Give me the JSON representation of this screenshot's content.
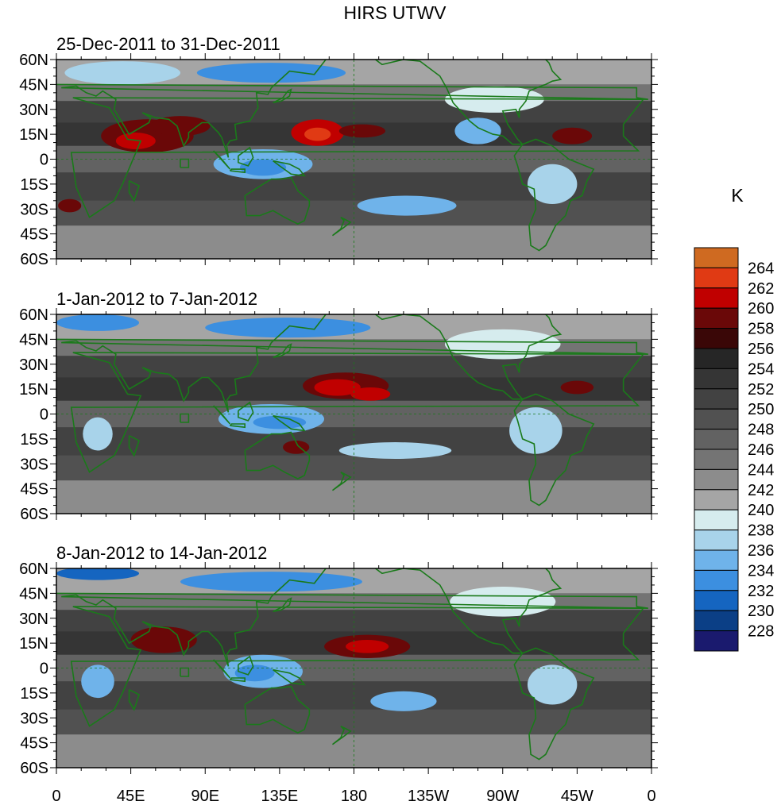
{
  "title": "HIRS UTWV",
  "colorbar": {
    "unit": "K",
    "levels": [
      228,
      230,
      232,
      234,
      236,
      238,
      240,
      242,
      244,
      246,
      248,
      250,
      252,
      254,
      256,
      258,
      260,
      262,
      264
    ],
    "colors": [
      "#1a1a6e",
      "#0b3f86",
      "#1565c0",
      "#3c8fe0",
      "#6fb3ea",
      "#a8d3ea",
      "#d6ecee",
      "#a5a5a5",
      "#8c8c8c",
      "#747474",
      "#626262",
      "#515151",
      "#424242",
      "#353535",
      "#262626",
      "#3a0707",
      "#6a0808",
      "#c00000",
      "#e03a14",
      "#cf6a21"
    ]
  },
  "axes": {
    "y_ticks": [
      "60N",
      "45N",
      "30N",
      "15N",
      "0",
      "15S",
      "30S",
      "45S",
      "60S"
    ],
    "x_ticks": [
      "0",
      "45E",
      "90E",
      "135E",
      "180",
      "135W",
      "90W",
      "45W",
      "0"
    ]
  },
  "panels": [
    {
      "title": "25-Dec-2011 to 31-Dec-2011",
      "features": [
        {
          "lon": 55,
          "lat": 14,
          "rx": 28,
          "ry": 10,
          "color": "#6a0808"
        },
        {
          "lon": 48,
          "lat": 11,
          "rx": 12,
          "ry": 5,
          "color": "#c00000"
        },
        {
          "lon": 75,
          "lat": 20,
          "rx": 18,
          "ry": 6,
          "color": "#6a0808"
        },
        {
          "lon": 158,
          "lat": 16,
          "rx": 16,
          "ry": 8,
          "color": "#c00000"
        },
        {
          "lon": 158,
          "lat": 15,
          "rx": 8,
          "ry": 4,
          "color": "#e03a14"
        },
        {
          "lon": 185,
          "lat": 17,
          "rx": 14,
          "ry": 4,
          "color": "#6a0808"
        },
        {
          "lon": 312,
          "lat": 14,
          "rx": 12,
          "ry": 5,
          "color": "#6a0808"
        },
        {
          "lon": 8,
          "lat": -28,
          "rx": 7,
          "ry": 4,
          "color": "#6a0808"
        },
        {
          "lon": 125,
          "lat": -3,
          "rx": 30,
          "ry": 9,
          "color": "#6fb3ea"
        },
        {
          "lon": 125,
          "lat": -5,
          "rx": 14,
          "ry": 5,
          "color": "#3c8fe0"
        },
        {
          "lon": 212,
          "lat": -28,
          "rx": 30,
          "ry": 6,
          "color": "#6fb3ea"
        },
        {
          "lon": 255,
          "lat": 17,
          "rx": 14,
          "ry": 8,
          "color": "#6fb3ea"
        },
        {
          "lon": 300,
          "lat": -15,
          "rx": 15,
          "ry": 12,
          "color": "#a8d3ea"
        },
        {
          "lon": 130,
          "lat": 52,
          "rx": 45,
          "ry": 6,
          "color": "#3c8fe0"
        },
        {
          "lon": 265,
          "lat": 36,
          "rx": 30,
          "ry": 8,
          "color": "#d6ecee"
        },
        {
          "lon": 40,
          "lat": 52,
          "rx": 35,
          "ry": 7,
          "color": "#a8d3ea"
        }
      ]
    },
    {
      "title": "1-Jan-2012 to 7-Jan-2012",
      "features": [
        {
          "lon": 175,
          "lat": 17,
          "rx": 26,
          "ry": 8,
          "color": "#6a0808"
        },
        {
          "lon": 170,
          "lat": 16,
          "rx": 14,
          "ry": 5,
          "color": "#c00000"
        },
        {
          "lon": 190,
          "lat": 12,
          "rx": 12,
          "ry": 4,
          "color": "#c00000"
        },
        {
          "lon": 315,
          "lat": 16,
          "rx": 10,
          "ry": 4,
          "color": "#6a0808"
        },
        {
          "lon": 145,
          "lat": -20,
          "rx": 8,
          "ry": 4,
          "color": "#6a0808"
        },
        {
          "lon": 130,
          "lat": -3,
          "rx": 32,
          "ry": 9,
          "color": "#6fb3ea"
        },
        {
          "lon": 135,
          "lat": -5,
          "rx": 16,
          "ry": 4,
          "color": "#3c8fe0"
        },
        {
          "lon": 205,
          "lat": -22,
          "rx": 34,
          "ry": 5,
          "color": "#a8d3ea"
        },
        {
          "lon": 290,
          "lat": -10,
          "rx": 16,
          "ry": 14,
          "color": "#a8d3ea"
        },
        {
          "lon": 25,
          "lat": -12,
          "rx": 9,
          "ry": 10,
          "color": "#a8d3ea"
        },
        {
          "lon": 140,
          "lat": 52,
          "rx": 50,
          "ry": 6,
          "color": "#3c8fe0"
        },
        {
          "lon": 25,
          "lat": 55,
          "rx": 25,
          "ry": 5,
          "color": "#3c8fe0"
        },
        {
          "lon": 270,
          "lat": 42,
          "rx": 35,
          "ry": 9,
          "color": "#d6ecee"
        }
      ]
    },
    {
      "title": "8-Jan-2012 to 14-Jan-2012",
      "features": [
        {
          "lon": 65,
          "lat": 17,
          "rx": 20,
          "ry": 8,
          "color": "#6a0808"
        },
        {
          "lon": 188,
          "lat": 13,
          "rx": 26,
          "ry": 7,
          "color": "#6a0808"
        },
        {
          "lon": 188,
          "lat": 13,
          "rx": 13,
          "ry": 4,
          "color": "#c00000"
        },
        {
          "lon": 125,
          "lat": -2,
          "rx": 24,
          "ry": 10,
          "color": "#6fb3ea"
        },
        {
          "lon": 120,
          "lat": -3,
          "rx": 12,
          "ry": 5,
          "color": "#3c8fe0"
        },
        {
          "lon": 210,
          "lat": -20,
          "rx": 20,
          "ry": 6,
          "color": "#6fb3ea"
        },
        {
          "lon": 25,
          "lat": -8,
          "rx": 10,
          "ry": 10,
          "color": "#6fb3ea"
        },
        {
          "lon": 300,
          "lat": -10,
          "rx": 15,
          "ry": 12,
          "color": "#a8d3ea"
        },
        {
          "lon": 130,
          "lat": 52,
          "rx": 55,
          "ry": 6,
          "color": "#3c8fe0"
        },
        {
          "lon": 25,
          "lat": 57,
          "rx": 25,
          "ry": 4,
          "color": "#1565c0"
        },
        {
          "lon": 270,
          "lat": 40,
          "rx": 32,
          "ry": 9,
          "color": "#d6ecee"
        }
      ]
    }
  ]
}
